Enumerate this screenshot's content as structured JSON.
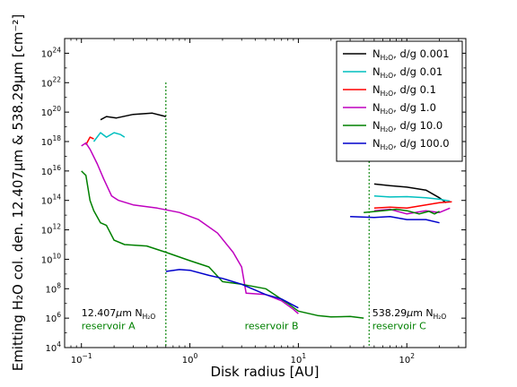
{
  "chart_data": {
    "type": "line",
    "xlabel": "Disk radius [AU]",
    "ylabel": "Emitting H₂O col. den. 12.407μm & 538.29μm [cm⁻²]",
    "xscale": "log",
    "yscale": "log",
    "xlim": [
      0.07,
      350
    ],
    "ylim": [
      10000.0,
      1e+25
    ],
    "x_ticks": [
      {
        "value": 0.1,
        "base": "10",
        "exp": "−1"
      },
      {
        "value": 1,
        "base": "10",
        "exp": "0"
      },
      {
        "value": 10,
        "base": "10",
        "exp": "1"
      },
      {
        "value": 100,
        "base": "10",
        "exp": "2"
      }
    ],
    "y_ticks": [
      {
        "value": 10000.0,
        "base": "10",
        "exp": "4"
      },
      {
        "value": 1000000.0,
        "base": "10",
        "exp": "6"
      },
      {
        "value": 100000000.0,
        "base": "10",
        "exp": "8"
      },
      {
        "value": 10000000000.0,
        "base": "10",
        "exp": "10"
      },
      {
        "value": 1000000000000.0,
        "base": "10",
        "exp": "12"
      },
      {
        "value": 100000000000000.0,
        "base": "10",
        "exp": "14"
      },
      {
        "value": 1e+16,
        "base": "10",
        "exp": "16"
      },
      {
        "value": 1e+18,
        "base": "10",
        "exp": "18"
      },
      {
        "value": 1e+20,
        "base": "10",
        "exp": "20"
      },
      {
        "value": 1e+22,
        "base": "10",
        "exp": "22"
      },
      {
        "value": 1e+24,
        "base": "10",
        "exp": "24"
      }
    ],
    "legend_position": "top-right",
    "series": [
      {
        "name": "N_H2O, d/g 0.001",
        "legend_main": "N",
        "legend_sub": "H2O",
        "legend_rest": ", d/g 0.001",
        "color": "#000000",
        "segments": [
          [
            [
              0.15,
              3e+19
            ],
            [
              0.17,
              5e+19
            ],
            [
              0.21,
              4e+19
            ],
            [
              0.3,
              7e+19
            ],
            [
              0.45,
              8.5e+19
            ],
            [
              0.6,
              5e+19
            ]
          ],
          [
            [
              50,
              1300000000000000.0
            ],
            [
              70,
              1000000000000000.0
            ],
            [
              100,
              800000000000000.0
            ],
            [
              150,
              500000000000000.0
            ],
            [
              200,
              150000000000000.0
            ],
            [
              230,
              70000000000000.0
            ]
          ]
        ]
      },
      {
        "name": "N_H2O, d/g 0.01",
        "legend_main": "N",
        "legend_sub": "H2O",
        "legend_rest": ", d/g 0.01",
        "color": "#00bfbf",
        "segments": [
          [
            [
              0.13,
              1e+18
            ],
            [
              0.15,
              4e+18
            ],
            [
              0.17,
              2e+18
            ],
            [
              0.2,
              4e+18
            ],
            [
              0.23,
              3e+18
            ],
            [
              0.25,
              2e+18
            ]
          ],
          [
            [
              50,
              200000000000000.0
            ],
            [
              70,
              170000000000000.0
            ],
            [
              100,
              180000000000000.0
            ],
            [
              150,
              150000000000000.0
            ],
            [
              200,
              120000000000000.0
            ],
            [
              250,
              90000000000000.0
            ]
          ]
        ]
      },
      {
        "name": "N_H2O, d/g 0.1",
        "legend_main": "N",
        "legend_sub": "H2O",
        "legend_rest": ", d/g 0.1",
        "color": "#ff0000",
        "segments": [
          [
            [
              0.11,
              6e+17
            ],
            [
              0.12,
              2e+18
            ],
            [
              0.13,
              1.5e+18
            ]
          ],
          [
            [
              50,
              30000000000000.0
            ],
            [
              70,
              35000000000000.0
            ],
            [
              100,
              30000000000000.0
            ],
            [
              150,
              50000000000000.0
            ],
            [
              200,
              70000000000000.0
            ],
            [
              260,
              80000000000000.0
            ]
          ]
        ]
      },
      {
        "name": "N_H2O, d/g 1.0",
        "legend_main": "N",
        "legend_sub": "H2O",
        "legend_rest": ", d/g 1.0",
        "color": "#bf00bf",
        "segments": [
          [
            [
              0.1,
              5e+17
            ],
            [
              0.11,
              8e+17
            ],
            [
              0.12,
              3e+17
            ],
            [
              0.14,
              3e+16
            ],
            [
              0.16,
              3000000000000000.0
            ],
            [
              0.19,
              200000000000000.0
            ],
            [
              0.22,
              100000000000000.0
            ],
            [
              0.3,
              50000000000000.0
            ],
            [
              0.5,
              30000000000000.0
            ],
            [
              0.8,
              15000000000000.0
            ],
            [
              1.2,
              5000000000000.0
            ],
            [
              1.8,
              600000000000.0
            ],
            [
              2.5,
              30000000000.0
            ],
            [
              3.0,
              3000000000.0
            ],
            [
              3.3,
              50000000.0
            ],
            [
              5,
              40000000.0
            ],
            [
              7,
              15000000.0
            ],
            [
              9,
              4000000.0
            ],
            [
              10,
              2000000.0
            ]
          ],
          [
            [
              50,
              20000000000000.0
            ],
            [
              70,
              25000000000000.0
            ],
            [
              100,
              12000000000000.0
            ],
            [
              150,
              20000000000000.0
            ],
            [
              200,
              15000000000000.0
            ],
            [
              250,
              30000000000000.0
            ]
          ]
        ]
      },
      {
        "name": "N_H2O, d/g 10.0",
        "legend_main": "N",
        "legend_sub": "H2O",
        "legend_rest": ", d/g 10.0",
        "color": "#008000",
        "segments": [
          [
            [
              0.1,
              1e+16
            ],
            [
              0.11,
              5000000000000000.0
            ],
            [
              0.12,
              100000000000000.0
            ],
            [
              0.13,
              20000000000000.0
            ],
            [
              0.15,
              3000000000000.0
            ],
            [
              0.17,
              2000000000000.0
            ],
            [
              0.2,
              200000000000.0
            ],
            [
              0.25,
              100000000000.0
            ],
            [
              0.4,
              80000000000.0
            ],
            [
              0.6,
              30000000000.0
            ],
            [
              1.0,
              8000000000.0
            ],
            [
              1.5,
              3000000000.0
            ],
            [
              2,
              300000000.0
            ],
            [
              3,
              200000000.0
            ],
            [
              5,
              100000000.0
            ],
            [
              8,
              10000000.0
            ],
            [
              10,
              3000000.0
            ],
            [
              15,
              1500000.0
            ],
            [
              20,
              1200000.0
            ],
            [
              30,
              1300000.0
            ],
            [
              40,
              1000000.0
            ]
          ],
          [
            [
              40,
              15000000000000.0
            ],
            [
              60,
              20000000000000.0
            ],
            [
              80,
              25000000000000.0
            ],
            [
              100,
              20000000000000.0
            ],
            [
              130,
              12000000000000.0
            ],
            [
              160,
              18000000000000.0
            ],
            [
              180,
              12000000000000.0
            ],
            [
              200,
              18000000000000.0
            ]
          ]
        ]
      },
      {
        "name": "N_H2O, d/g 100.0",
        "legend_main": "N",
        "legend_sub": "H2O",
        "legend_rest": ", d/g 100.0",
        "color": "#0000cc",
        "segments": [
          [
            [
              0.6,
              1500000000.0
            ],
            [
              0.8,
              2000000000.0
            ],
            [
              1.0,
              1800000000.0
            ],
            [
              1.5,
              800000000.0
            ],
            [
              2,
              500000000.0
            ],
            [
              3,
              200000000.0
            ],
            [
              5,
              40000000.0
            ],
            [
              7,
              20000000.0
            ],
            [
              10,
              5000000.0
            ]
          ],
          [
            [
              30,
              8000000000000.0
            ],
            [
              50,
              7000000000000.0
            ],
            [
              70,
              8000000000000.0
            ],
            [
              100,
              5000000000000.0
            ],
            [
              150,
              5000000000000.0
            ],
            [
              200,
              3000000000000.0
            ]
          ]
        ]
      }
    ],
    "reservoir_lines": [
      0.6,
      45
    ],
    "reservoir_line_color": "#008000",
    "annotations": [
      {
        "main": "12.407",
        "mu": "μ",
        "unit": "m N",
        "sub": "H2O",
        "x": 0.1,
        "y": 1000000.0
      },
      {
        "main": "538.29",
        "mu": "μ",
        "unit": "m N",
        "sub": "H2O",
        "x": 48,
        "y": 1000000.0
      }
    ],
    "reservoirs": [
      {
        "label": "reservoir A",
        "x": 0.1,
        "y": 180000.0
      },
      {
        "label": "reservoir B",
        "x": 3.2,
        "y": 180000.0
      },
      {
        "label": "reservoir C",
        "x": 48,
        "y": 180000.0
      }
    ]
  }
}
